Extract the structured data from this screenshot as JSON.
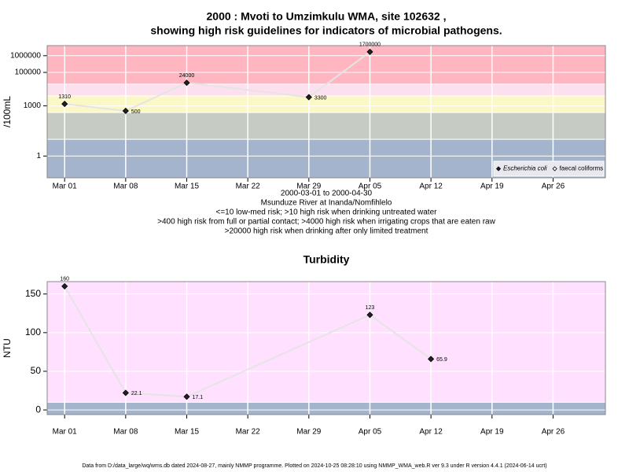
{
  "chart_data": [
    {
      "type": "line",
      "title": [
        "2000 : Mvoti to Umzimkulu WMA, site 102632 ,",
        "showing high risk guidelines for indicators of microbial pathogens."
      ],
      "annotations": [
        "2000-03-01 to 2000-04-30",
        "Msunduze River at Inanda/Nomfihlelo",
        "<=10 low-med risk; >10 high risk when drinking untreated water",
        ">400 high risk from full or partial contact; >4000 high risk when irrigating crops that are eaten raw",
        ">20000 high risk when drinking after only limited treatment"
      ],
      "ylabel": "/100mL",
      "log_y": true,
      "grid": true,
      "x": [
        "Mar 01",
        "Mar 08",
        "Mar 15",
        "Mar 29",
        "Apr 05"
      ],
      "series": [
        {
          "name": "Escherichia coli",
          "color": "#222222",
          "values": [
            1310,
            500,
            24000,
            3300,
            1700000
          ]
        },
        {
          "name": "faecal coliforms",
          "color": "#ffffff",
          "values": [
            null,
            null,
            null,
            null,
            null
          ]
        }
      ],
      "xlim": [
        "Feb 27",
        "May 02"
      ],
      "xticks": [
        "Mar 01",
        "Mar 08",
        "Mar 15",
        "Mar 22",
        "Mar 29",
        "Apr 05",
        "Apr 12",
        "Apr 19",
        "Apr 26"
      ],
      "ylim": [
        0.05,
        4000000
      ],
      "yticks": [
        1,
        1000,
        100000,
        1000000
      ],
      "bands": [
        {
          "from": 0.05,
          "to": 10,
          "color": "#a4b4cc"
        },
        {
          "from": 10,
          "to": 400,
          "color": "#c6ccc4"
        },
        {
          "from": 400,
          "to": 4000,
          "color": "#fcf8c6"
        },
        {
          "from": 4000,
          "to": 20000,
          "color": "#fde0ee"
        },
        {
          "from": 20000,
          "to": 4000000,
          "color": "#ffb6c1"
        }
      ],
      "line_color": "#e4e4e4",
      "legend": "bottom-right"
    },
    {
      "type": "line",
      "title": [
        "Turbidity"
      ],
      "ylabel": "NTU",
      "log_y": false,
      "grid": true,
      "x": [
        "Mar 01",
        "Mar 08",
        "Mar 15",
        "Apr 05",
        "Apr 12"
      ],
      "series": [
        {
          "name": "Turbidity",
          "color": "#222222",
          "values": [
            160,
            22.1,
            17.1,
            123,
            65.9
          ]
        }
      ],
      "xlim": [
        "Feb 27",
        "May 02"
      ],
      "xticks": [
        "Mar 01",
        "Mar 08",
        "Mar 15",
        "Mar 22",
        "Mar 29",
        "Apr 05",
        "Apr 12",
        "Apr 19",
        "Apr 26"
      ],
      "ylim": [
        -6,
        166
      ],
      "yticks": [
        0,
        50,
        100,
        150
      ],
      "bands": [
        {
          "from": -6,
          "to": 10,
          "color": "#a4b4cc"
        },
        {
          "from": 10,
          "to": 166,
          "color": "#ffe0ff"
        }
      ],
      "line_color": "#e4e4e4"
    }
  ],
  "footer": "Data from D:/data_large/wq/wms.db dated 2024-08-27, mainly NMMP programme. Plotted on 2024-10-25 08:28:10 using NMMP_WMA_web.R ver 9.3 under R version 4.4.1 (2024-06-14 ucrt)"
}
